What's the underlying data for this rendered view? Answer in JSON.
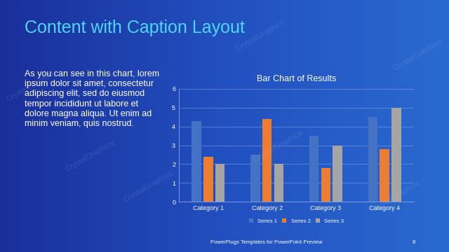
{
  "slide": {
    "title": "Content with Caption Layout",
    "caption": "As you can see in this chart, lorem\nipsum dolor sit amet, consectetur\nadipiscing elit, sed do eiusmod\ntempor incididunt ut labore et\ndolore magna aliqua. Ut enim ad\nminim veniam, quis nostrud.",
    "footer": "PowerPlugs Templates for PowerPoint Preview",
    "page": "8",
    "watermark": "CrystalGraphics"
  },
  "chart_data": {
    "type": "bar",
    "title": "Bar Chart of Results",
    "categories": [
      "Category 1",
      "Category 2",
      "Category 3",
      "Category 4"
    ],
    "series": [
      {
        "name": "Series 1",
        "color": "#4472c4",
        "values": [
          4.3,
          2.5,
          3.5,
          4.5
        ]
      },
      {
        "name": "Series 2",
        "color": "#ed7d31",
        "values": [
          2.4,
          4.4,
          1.8,
          2.8
        ]
      },
      {
        "name": "Series 3",
        "color": "#a5a5a5",
        "values": [
          2.0,
          2.0,
          3.0,
          5.0
        ]
      }
    ],
    "ylim": [
      0,
      6
    ],
    "yticks": [
      0,
      1,
      2,
      3,
      4,
      5,
      6
    ],
    "grid": true,
    "legend": "lower center"
  }
}
